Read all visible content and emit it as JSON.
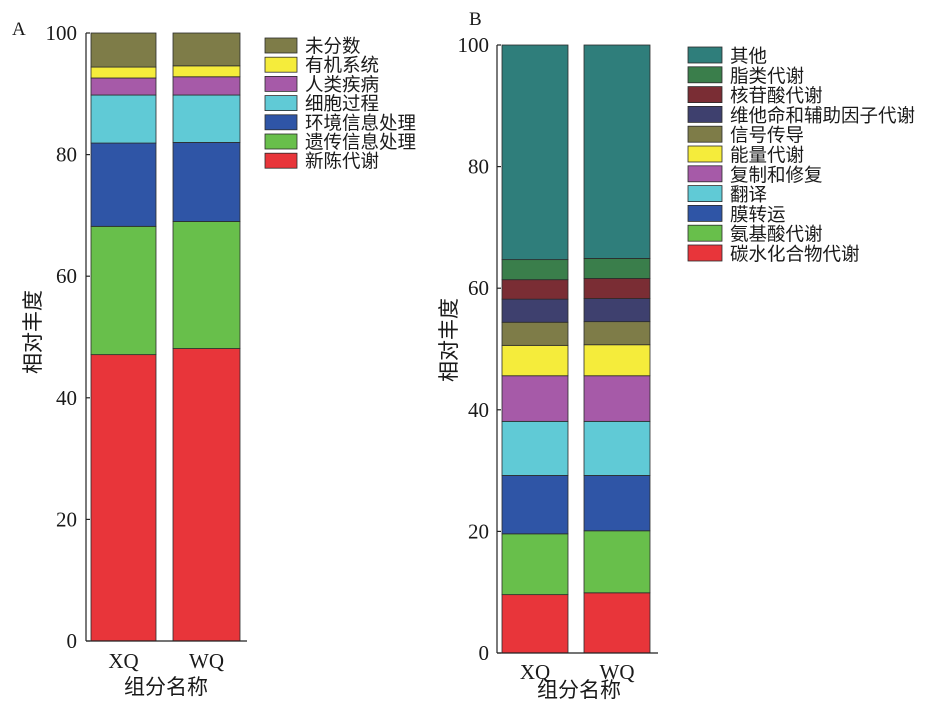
{
  "chart_data": [
    {
      "panel_label": "A",
      "type": "bar",
      "stacked": true,
      "categories": [
        "XQ",
        "WQ"
      ],
      "xlabel": "组分名称",
      "ylabel": "相对丰度",
      "ylim": [
        0,
        100
      ],
      "yticks": [
        0,
        20,
        40,
        60,
        80,
        100
      ],
      "grid": false,
      "legend_position": "right",
      "series": [
        {
          "name": "新陈代谢",
          "color": "#e8353a",
          "values": [
            47.1,
            48.1
          ]
        },
        {
          "name": "遗传信息处理",
          "color": "#68bf4b",
          "values": [
            21.1,
            20.9
          ]
        },
        {
          "name": "环境信息处理",
          "color": "#2f55a6",
          "values": [
            13.7,
            13.0
          ]
        },
        {
          "name": "细胞过程",
          "color": "#60cad6",
          "values": [
            7.9,
            7.8
          ]
        },
        {
          "name": "人类疾病",
          "color": "#a65aa8",
          "values": [
            2.8,
            3.0
          ]
        },
        {
          "name": "有机系统",
          "color": "#f5ec3b",
          "values": [
            1.8,
            1.8
          ]
        },
        {
          "name": "未分数",
          "color": "#7e7c48",
          "values": [
            5.6,
            5.4
          ]
        }
      ]
    },
    {
      "panel_label": "B",
      "type": "bar",
      "stacked": true,
      "categories": [
        "XQ",
        "WQ"
      ],
      "xlabel": "组分名称",
      "ylabel": "相对丰度",
      "ylim": [
        0,
        100
      ],
      "yticks": [
        0,
        20,
        40,
        60,
        80,
        100
      ],
      "grid": false,
      "legend_position": "right",
      "series": [
        {
          "name": "碳水化合物代谢",
          "color": "#e8353a",
          "values": [
            9.6,
            9.9
          ]
        },
        {
          "name": "氨基酸代谢",
          "color": "#68bf4b",
          "values": [
            10.0,
            10.2
          ]
        },
        {
          "name": "膜转运",
          "color": "#2f55a6",
          "values": [
            9.6,
            9.1
          ]
        },
        {
          "name": "翻译",
          "color": "#60cad6",
          "values": [
            8.9,
            8.9
          ]
        },
        {
          "name": "复制和修复",
          "color": "#a65aa8",
          "values": [
            7.5,
            7.5
          ]
        },
        {
          "name": "能量代谢",
          "color": "#f5ec3b",
          "values": [
            5.0,
            5.1
          ]
        },
        {
          "name": "信号传导",
          "color": "#7e7c48",
          "values": [
            3.8,
            3.8
          ]
        },
        {
          "name": "维他命和辅助因子代谢",
          "color": "#3e406e",
          "values": [
            3.8,
            3.8
          ]
        },
        {
          "name": "核苷酸代谢",
          "color": "#7a2d34",
          "values": [
            3.2,
            3.3
          ]
        },
        {
          "name": "脂类代谢",
          "color": "#3a7e4b",
          "values": [
            3.3,
            3.3
          ]
        },
        {
          "name": "其他",
          "color": "#2f7e7b",
          "values": [
            35.3,
            35.1
          ]
        }
      ]
    }
  ]
}
